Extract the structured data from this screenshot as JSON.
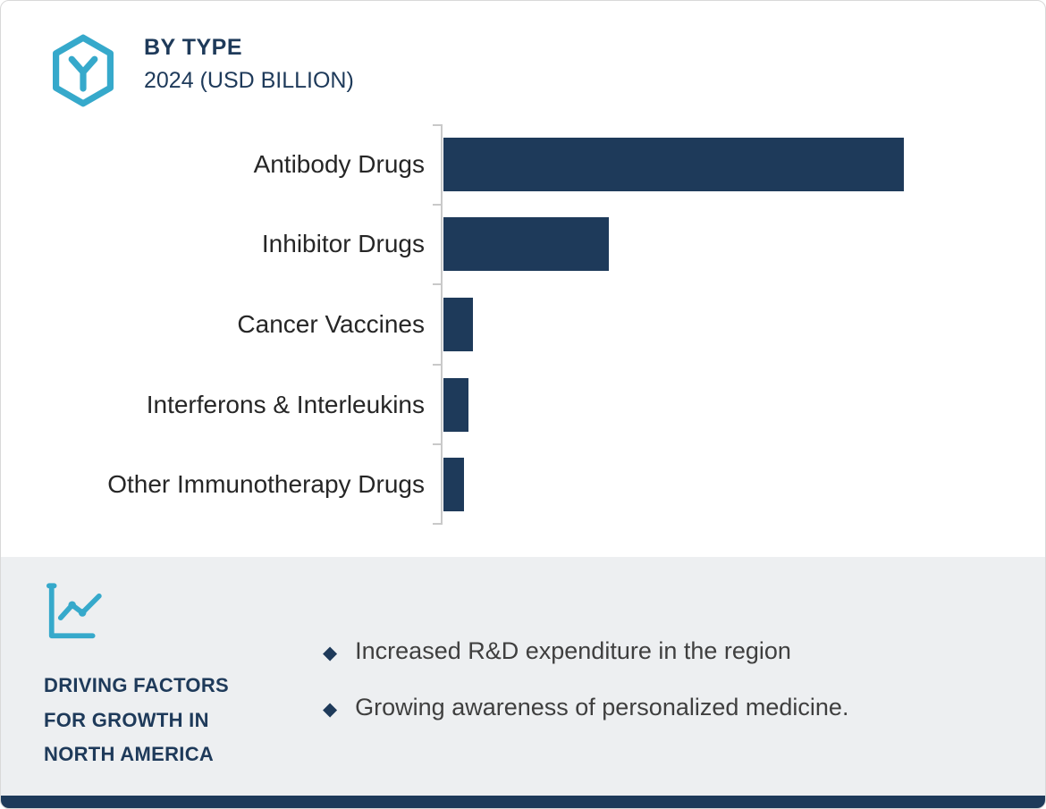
{
  "header": {
    "title": "BY TYPE",
    "subtitle": "2024 (USD BILLION)"
  },
  "chart_data": {
    "type": "bar",
    "orientation": "horizontal",
    "title": "BY TYPE",
    "subtitle": "2024 (USD BILLION)",
    "categories": [
      "Antibody Drugs",
      "Inhibitor Drugs",
      "Cancer Vaccines",
      "Interferons & Interleukins",
      "Other Immunotherapy Drugs"
    ],
    "values": [
      100,
      36,
      6.5,
      5.5,
      4.5
    ],
    "values_note": "Relative bar lengths (max bar = 100); no numeric axis or data labels are shown in the image",
    "xlabel": "",
    "ylabel": "",
    "xlim": [
      0,
      100
    ],
    "grid": false,
    "legend": false,
    "bar_color": "#1e3a5a",
    "axis_color": "#c9c9c9"
  },
  "footer": {
    "heading": "DRIVING FACTORS FOR GROWTH IN NORTH AMERICA",
    "bullet_glyph": "◆",
    "bullets": [
      "Increased R&D expenditure in the region",
      "Growing awareness of personalized medicine."
    ]
  },
  "icons": {
    "header": "hexagon-molecule-icon",
    "footer": "line-chart-icon"
  },
  "colors": {
    "navy": "#1e3a5a",
    "teal": "#36a9cb",
    "footer_bg": "#edeff1",
    "border": "#d9d9d9",
    "label_text": "#262626",
    "bullet_text": "#3f3f3f"
  }
}
